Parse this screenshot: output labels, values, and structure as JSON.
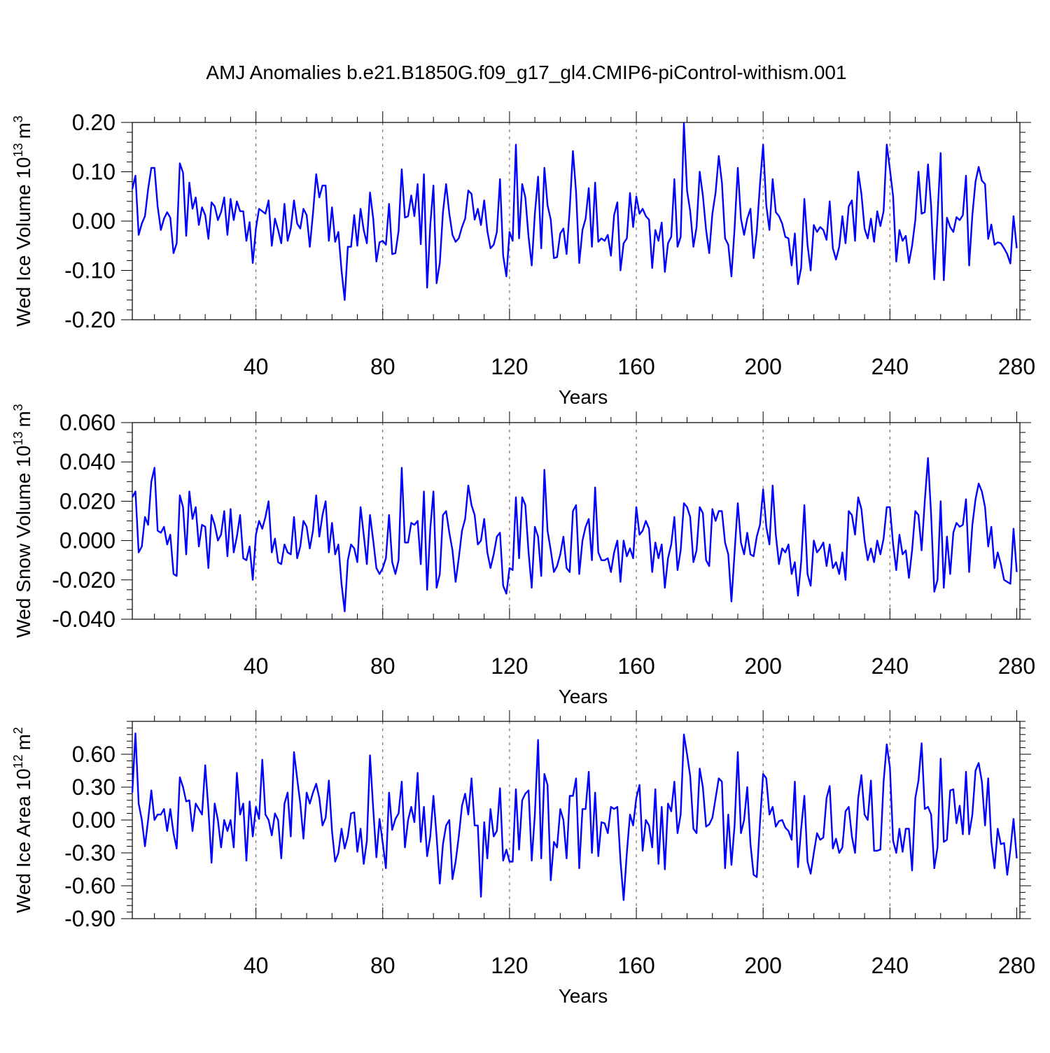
{
  "title": "AMJ Anomalies b.e21.B1850G.f09_g17_gl4.CMIP6-piControl-withism.001",
  "chart_data": [
    {
      "type": "line",
      "ylabel": "Wed Ice Volume 10",
      "ylabel_exp": "13",
      "ylabel_unit": "m",
      "ylabel_unit_exp": "3",
      "xlabel": "Years",
      "xlim": [
        1,
        281
      ],
      "ylim": [
        -0.2,
        0.2
      ],
      "yticks": [
        -0.2,
        -0.1,
        0.0,
        0.1,
        0.2
      ],
      "ytick_labels": [
        "-0.20",
        "-0.10",
        "0.00",
        "0.10",
        "0.20"
      ],
      "yminor_step": 0.02,
      "xticks": [
        40,
        80,
        120,
        160,
        200,
        240,
        280
      ],
      "xtick_labels": [
        "40",
        "80",
        "120",
        "160",
        "200",
        "240",
        "280"
      ],
      "xminor_step": 8,
      "grid_x": [
        40,
        80,
        120,
        160,
        200,
        240
      ],
      "color": "#0000ff",
      "x_start": 1,
      "values": [
        0.065,
        0.092,
        -0.028,
        -0.005,
        0.01,
        0.065,
        0.108,
        0.108,
        0.03,
        -0.018,
        0.005,
        0.018,
        0.007,
        -0.065,
        -0.045,
        0.117,
        0.098,
        -0.03,
        0.078,
        0.025,
        0.048,
        -0.008,
        0.028,
        0.012,
        -0.036,
        0.038,
        0.03,
        0.002,
        0.018,
        0.048,
        -0.028,
        0.045,
        0.002,
        0.04,
        0.02,
        0.02,
        -0.04,
        -0.002,
        -0.085,
        -0.015,
        0.025,
        0.02,
        0.015,
        0.042,
        -0.05,
        0.005,
        -0.018,
        -0.045,
        0.035,
        -0.04,
        -0.015,
        0.042,
        -0.005,
        -0.015,
        0.025,
        0.012,
        -0.052,
        0.015,
        0.095,
        0.048,
        0.072,
        0.072,
        -0.04,
        0.028,
        -0.042,
        -0.022,
        -0.1,
        -0.16,
        -0.052,
        -0.052,
        0.012,
        -0.05,
        0.025,
        -0.018,
        -0.045,
        0.058,
        0.005,
        -0.082,
        -0.043,
        -0.04,
        -0.048,
        0.035,
        -0.067,
        -0.065,
        -0.02,
        0.105,
        0.007,
        0.01,
        0.052,
        0.01,
        0.075,
        -0.047,
        0.095,
        -0.135,
        -0.008,
        0.072,
        -0.126,
        -0.085,
        0.018,
        0.075,
        0.015,
        -0.028,
        -0.042,
        -0.035,
        -0.012,
        0.005,
        0.062,
        0.055,
        0.003,
        0.025,
        -0.008,
        0.042,
        -0.02,
        -0.055,
        -0.048,
        -0.022,
        0.085,
        -0.07,
        -0.112,
        -0.022,
        -0.04,
        0.155,
        -0.035,
        0.075,
        0.048,
        -0.032,
        -0.09,
        0.015,
        0.09,
        -0.055,
        0.108,
        0.032,
        0.003,
        -0.075,
        -0.073,
        -0.025,
        -0.015,
        -0.067,
        0.025,
        0.142,
        0.058,
        -0.085,
        -0.018,
        0.005,
        0.067,
        -0.052,
        0.078,
        -0.042,
        -0.035,
        -0.04,
        -0.028,
        -0.07,
        0.012,
        0.038,
        -0.1,
        -0.045,
        -0.035,
        0.057,
        -0.012,
        0.05,
        0.015,
        0.025,
        0.01,
        0.003,
        -0.095,
        -0.018,
        -0.04,
        -0.003,
        -0.103,
        -0.045,
        -0.032,
        0.085,
        -0.052,
        -0.032,
        0.198,
        0.062,
        0.02,
        -0.052,
        -0.012,
        0.1,
        0.052,
        -0.018,
        -0.065,
        0.015,
        0.058,
        0.132,
        0.078,
        -0.035,
        -0.048,
        -0.112,
        -0.015,
        0.108,
        0.005,
        -0.028,
        0.005,
        0.025,
        -0.075,
        -0.022,
        0.075,
        0.155,
        0.032,
        -0.018,
        0.085,
        0.018,
        0.01,
        -0.005,
        -0.032,
        -0.035,
        -0.09,
        -0.025,
        -0.128,
        -0.095,
        0.045,
        -0.048,
        -0.1,
        -0.008,
        -0.022,
        -0.012,
        -0.018,
        -0.038,
        0.04,
        -0.055,
        -0.078,
        -0.052,
        0.01,
        -0.045,
        0.03,
        0.042,
        -0.04,
        0.1,
        0.055,
        -0.015,
        -0.035,
        0.005,
        -0.042,
        0.02,
        -0.01,
        0.02,
        0.155,
        0.105,
        0.05,
        -0.082,
        -0.018,
        -0.04,
        -0.03,
        -0.085,
        -0.05,
        0.002,
        0.1,
        0.015,
        0.018,
        0.115,
        0.03,
        -0.118,
        0.01,
        0.138,
        -0.12,
        0.007,
        -0.012,
        -0.022,
        0.008,
        0.002,
        0.012,
        0.092,
        -0.09,
        0.012,
        0.08,
        0.11,
        0.082,
        0.075,
        -0.036,
        -0.007,
        -0.048,
        -0.043,
        -0.045,
        -0.055,
        -0.067,
        -0.086,
        0.01,
        -0.055
      ]
    },
    {
      "type": "line",
      "ylabel": "Wed Snow Volume 10",
      "ylabel_exp": "13",
      "ylabel_unit": "m",
      "ylabel_unit_exp": "3",
      "xlabel": "Years",
      "xlim": [
        1,
        281
      ],
      "ylim": [
        -0.04,
        0.06
      ],
      "yticks": [
        -0.04,
        -0.02,
        0.0,
        0.02,
        0.04,
        0.06
      ],
      "ytick_labels": [
        "-0.040",
        "-0.020",
        "0.000",
        "0.020",
        "0.040",
        "0.060"
      ],
      "yminor_step": 0.005,
      "xticks": [
        40,
        80,
        120,
        160,
        200,
        240,
        280
      ],
      "xtick_labels": [
        "40",
        "80",
        "120",
        "160",
        "200",
        "240",
        "280"
      ],
      "xminor_step": 8,
      "grid_x": [
        40,
        80,
        120,
        160,
        200,
        240
      ],
      "color": "#0000ff",
      "x_start": 1,
      "values": [
        0.022,
        0.025,
        -0.006,
        -0.003,
        0.012,
        0.008,
        0.03,
        0.037,
        0.005,
        0.004,
        0.007,
        -0.002,
        0.003,
        -0.017,
        -0.018,
        0.023,
        0.017,
        -0.007,
        0.025,
        0.011,
        0.017,
        -0.003,
        0.008,
        0.007,
        -0.014,
        0.013,
        0.008,
        0.0,
        0.003,
        0.015,
        -0.008,
        0.016,
        -0.006,
        0.002,
        0.013,
        -0.009,
        -0.01,
        -0.003,
        -0.02,
        0.003,
        0.01,
        0.006,
        0.012,
        0.02,
        -0.006,
        0.001,
        -0.011,
        -0.012,
        -0.002,
        -0.006,
        -0.007,
        0.012,
        -0.009,
        -0.003,
        0.01,
        0.007,
        -0.004,
        0.005,
        0.023,
        0.002,
        0.013,
        0.02,
        -0.006,
        0.009,
        -0.007,
        -0.002,
        -0.022,
        -0.036,
        -0.01,
        -0.002,
        -0.004,
        -0.011,
        0.017,
        0.003,
        -0.012,
        0.013,
        0.0,
        -0.014,
        -0.017,
        -0.014,
        -0.009,
        0.013,
        -0.011,
        -0.017,
        -0.01,
        0.037,
        -0.001,
        -0.001,
        0.009,
        0.008,
        0.01,
        -0.012,
        0.025,
        -0.025,
        0.006,
        0.025,
        -0.024,
        -0.017,
        0.013,
        0.015,
        0.004,
        -0.005,
        -0.021,
        -0.009,
        0.005,
        0.011,
        0.028,
        0.018,
        0.013,
        -0.002,
        0.0,
        0.011,
        -0.006,
        -0.014,
        -0.007,
        0.002,
        0.004,
        -0.023,
        -0.027,
        -0.014,
        -0.015,
        0.022,
        -0.009,
        0.022,
        0.018,
        -0.006,
        -0.024,
        0.007,
        0.002,
        -0.018,
        0.036,
        0.005,
        -0.005,
        -0.016,
        -0.013,
        -0.007,
        0.002,
        -0.014,
        -0.016,
        0.015,
        0.018,
        -0.017,
        0.0,
        0.007,
        0.011,
        -0.01,
        0.027,
        -0.006,
        -0.01,
        -0.01,
        -0.009,
        -0.016,
        -0.006,
        0.0,
        -0.021,
        0.0,
        -0.008,
        -0.004,
        -0.009,
        0.017,
        0.003,
        0.005,
        0.01,
        0.006,
        -0.016,
        -0.001,
        -0.009,
        -0.002,
        -0.024,
        -0.009,
        -0.002,
        0.012,
        -0.015,
        -0.005,
        0.019,
        0.017,
        0.012,
        -0.011,
        -0.005,
        0.017,
        0.014,
        -0.01,
        -0.013,
        0.016,
        0.01,
        0.015,
        0.015,
        -0.001,
        -0.007,
        -0.031,
        -0.006,
        0.019,
        -0.001,
        -0.007,
        0.004,
        -0.007,
        -0.008,
        0.002,
        0.008,
        0.026,
        0.007,
        -0.002,
        0.028,
        0.003,
        -0.012,
        -0.004,
        -0.006,
        -0.002,
        -0.017,
        -0.011,
        -0.028,
        -0.011,
        0.018,
        -0.017,
        -0.023,
        0.0,
        -0.006,
        -0.004,
        -0.001,
        -0.013,
        -0.002,
        -0.014,
        -0.011,
        -0.017,
        -0.006,
        -0.02,
        0.015,
        0.013,
        0.003,
        0.022,
        0.016,
        0.0,
        -0.01,
        -0.004,
        -0.011,
        0.0,
        -0.007,
        0.001,
        0.017,
        0.017,
        -0.002,
        -0.015,
        0.003,
        -0.007,
        -0.005,
        -0.019,
        -0.005,
        0.015,
        0.013,
        -0.005,
        0.02,
        0.042,
        0.013,
        -0.026,
        -0.02,
        0.02,
        -0.024,
        0.002,
        -0.017,
        0.004,
        0.009,
        0.007,
        0.008,
        0.021,
        -0.016,
        0.008,
        0.021,
        0.029,
        0.025,
        0.017,
        -0.003,
        0.007,
        -0.014,
        -0.006,
        -0.012,
        -0.02,
        -0.021,
        -0.022,
        0.006,
        -0.016
      ]
    },
    {
      "type": "line",
      "ylabel": "Wed Ice Area 10",
      "ylabel_exp": "12",
      "ylabel_unit": "m",
      "ylabel_unit_exp": "2",
      "xlabel": "Years",
      "xlim": [
        1,
        281
      ],
      "ylim": [
        -0.9,
        0.9
      ],
      "yticks": [
        -0.9,
        -0.6,
        -0.3,
        0.0,
        0.3,
        0.6
      ],
      "ytick_labels": [
        "-0.90",
        "-0.60",
        "-0.30",
        "0.00",
        "0.30",
        "0.60"
      ],
      "yminor_step": 0.06,
      "xticks": [
        40,
        80,
        120,
        160,
        200,
        240,
        280
      ],
      "xtick_labels": [
        "40",
        "80",
        "120",
        "160",
        "200",
        "240",
        "280"
      ],
      "xminor_step": 8,
      "grid_x": [
        40,
        80,
        120,
        160,
        200,
        240
      ],
      "color": "#0000ff",
      "x_start": 1,
      "values": [
        0.25,
        0.79,
        0.15,
        0.0,
        -0.24,
        0.0,
        0.27,
        0.0,
        0.05,
        0.05,
        0.1,
        -0.1,
        0.1,
        -0.12,
        -0.26,
        0.39,
        0.3,
        0.17,
        0.18,
        -0.1,
        0.15,
        0.1,
        0.05,
        0.5,
        0.1,
        -0.39,
        0.15,
        0.0,
        -0.25,
        0.0,
        -0.1,
        0.0,
        -0.25,
        0.43,
        0.05,
        0.15,
        -0.37,
        0.17,
        -0.15,
        0.12,
        0.01,
        0.55,
        0.05,
        0.0,
        -0.14,
        0.06,
        0.0,
        -0.35,
        0.15,
        0.25,
        -0.15,
        0.62,
        0.38,
        0.15,
        -0.17,
        0.25,
        0.15,
        0.25,
        0.33,
        0.2,
        -0.05,
        0.02,
        0.36,
        -0.1,
        -0.38,
        -0.3,
        -0.08,
        -0.26,
        -0.15,
        0.06,
        0.07,
        -0.29,
        -0.08,
        -0.4,
        -0.19,
        0.59,
        0.1,
        -0.34,
        0.01,
        -0.21,
        -0.44,
        0.25,
        -0.09,
        0.01,
        0.06,
        0.35,
        -0.25,
        0.0,
        0.12,
        -0.02,
        0.43,
        -0.2,
        0.12,
        -0.33,
        -0.15,
        0.22,
        -0.15,
        -0.58,
        -0.22,
        -0.05,
        0.0,
        -0.54,
        -0.38,
        -0.15,
        0.13,
        0.24,
        0.05,
        0.38,
        -0.05,
        -0.05,
        -0.7,
        -0.02,
        -0.35,
        0.1,
        -0.15,
        -0.1,
        0.29,
        -0.37,
        -0.27,
        -0.38,
        -0.38,
        0.28,
        -0.27,
        0.18,
        0.24,
        0.27,
        -0.37,
        0.05,
        0.73,
        -0.35,
        0.42,
        0.32,
        -0.55,
        -0.2,
        -0.25,
        0.1,
        -0.0,
        -0.35,
        0.22,
        0.22,
        0.38,
        -0.44,
        0.1,
        0.1,
        0.44,
        -0.3,
        0.25,
        -0.33,
        -0.02,
        -0.03,
        -0.12,
        0.12,
        0.1,
        0.12,
        -0.37,
        -0.73,
        -0.3,
        0.05,
        -0.05,
        0.2,
        0.32,
        -0.28,
        0.0,
        -0.05,
        -0.25,
        0.28,
        -0.4,
        0.12,
        -0.45,
        0.15,
        0.08,
        0.35,
        -0.12,
        0.05,
        0.78,
        0.6,
        0.4,
        -0.08,
        -0.12,
        0.47,
        0.3,
        -0.06,
        -0.04,
        0.02,
        0.2,
        0.38,
        0.35,
        -0.44,
        0.05,
        -0.41,
        -0.05,
        0.62,
        -0.12,
        0.0,
        0.3,
        -0.22,
        -0.5,
        -0.52,
        -0.02,
        0.42,
        0.38,
        0.05,
        0.12,
        -0.06,
        -0.01,
        0.0,
        -0.07,
        -0.1,
        -0.18,
        0.35,
        -0.43,
        -0.08,
        0.22,
        -0.38,
        -0.49,
        -0.3,
        -0.12,
        -0.18,
        -0.16,
        0.2,
        0.31,
        -0.26,
        -0.17,
        -0.3,
        -0.25,
        0.08,
        0.12,
        -0.15,
        -0.3,
        0.2,
        0.41,
        0.05,
        0.0,
        0.36,
        -0.28,
        -0.28,
        -0.27,
        0.35,
        0.69,
        0.48,
        -0.19,
        -0.3,
        -0.08,
        -0.29,
        -0.08,
        -0.08,
        -0.46,
        0.2,
        0.36,
        0.7,
        0.1,
        0.12,
        0.05,
        -0.44,
        -0.25,
        0.56,
        -0.2,
        -0.18,
        0.27,
        0.28,
        -0.03,
        0.13,
        -0.13,
        0.44,
        -0.13,
        0.05,
        0.45,
        0.52,
        0.35,
        -0.05,
        0.38,
        -0.2,
        -0.44,
        -0.08,
        -0.22,
        -0.21,
        -0.5,
        -0.27,
        0.01,
        -0.35
      ]
    }
  ]
}
